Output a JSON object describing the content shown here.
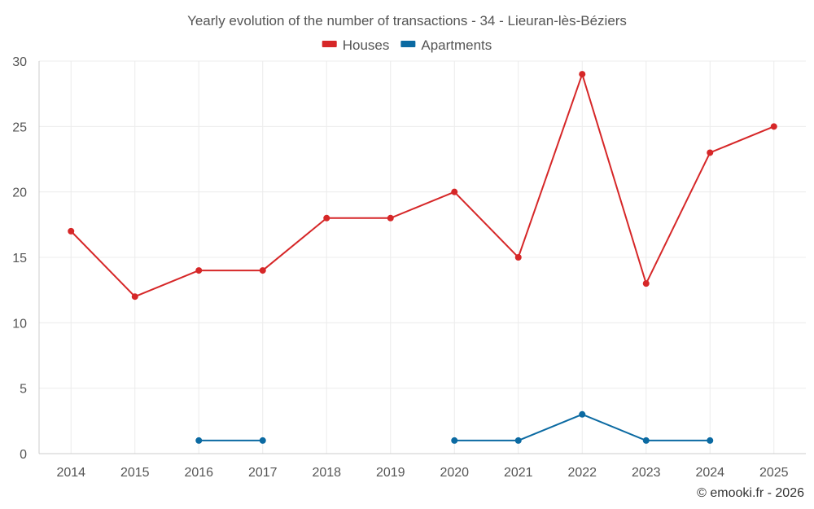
{
  "chart_data": {
    "type": "line",
    "title": "Yearly evolution of the number of transactions - 34 - Lieuran-lès-Béziers",
    "xlabel": "",
    "ylabel": "",
    "categories": [
      "2014",
      "2015",
      "2016",
      "2017",
      "2018",
      "2019",
      "2020",
      "2021",
      "2022",
      "2023",
      "2024",
      "2025"
    ],
    "ylim": [
      0,
      30
    ],
    "yticks": [
      0,
      5,
      10,
      15,
      20,
      25,
      30
    ],
    "grid": true,
    "legend_position": "top-center",
    "series": [
      {
        "name": "Houses",
        "color": "#d62728",
        "values": [
          17,
          12,
          14,
          14,
          18,
          18,
          20,
          15,
          29,
          13,
          23,
          25
        ]
      },
      {
        "name": "Apartments",
        "color": "#0b6aa2",
        "values": [
          null,
          null,
          1,
          1,
          null,
          null,
          1,
          1,
          3,
          1,
          1,
          null
        ]
      }
    ]
  },
  "credit": "© emooki.fr - 2026"
}
